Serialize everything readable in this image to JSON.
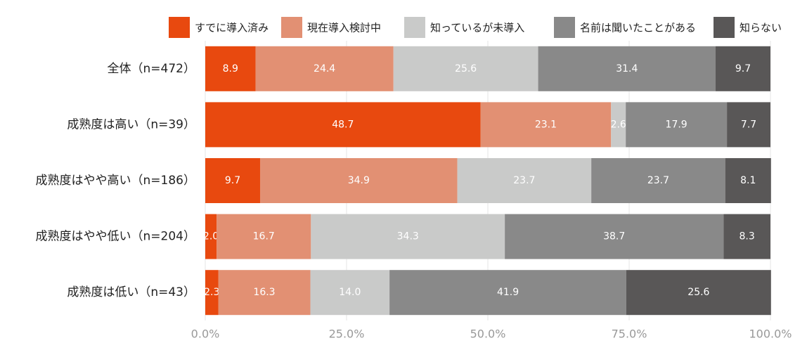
{
  "chart_data": {
    "type": "stacked-barh",
    "categories": [
      "全体（n=472）",
      "成熟度は高い（n=39）",
      "成熟度はやや高い（n=186）",
      "成熟度はやや低い（n=204）",
      "成熟度は低い（n=43）"
    ],
    "series": [
      {
        "name": "すでに導入済み",
        "color": "#e8490f",
        "values": [
          8.9,
          48.7,
          9.7,
          2.0,
          2.3
        ],
        "value_labels": [
          "8.9",
          "48.7",
          "9.7",
          "2.0",
          "2.3"
        ]
      },
      {
        "name": "現在導入検討中",
        "color": "#e29073",
        "values": [
          24.4,
          23.1,
          34.9,
          16.7,
          16.3
        ],
        "value_labels": [
          "24.4",
          "23.1",
          "34.9",
          "16.7",
          "16.3"
        ]
      },
      {
        "name": "知っているが未導入",
        "color": "#c9cac9",
        "values": [
          25.6,
          2.6,
          23.7,
          34.3,
          14.0
        ],
        "value_labels": [
          "25.6",
          "2.6",
          "23.7",
          "34.3",
          "14.0"
        ]
      },
      {
        "name": "名前は聞いたことがある",
        "color": "#898989",
        "values": [
          31.4,
          17.9,
          23.7,
          38.7,
          41.9
        ],
        "value_labels": [
          "31.4",
          "17.9",
          "23.7",
          "38.7",
          "41.9"
        ]
      },
      {
        "name": "知らない",
        "color": "#595757",
        "values": [
          9.7,
          7.7,
          8.1,
          8.3,
          25.6
        ],
        "value_labels": [
          "9.7",
          "7.7",
          "8.1",
          "8.3",
          "25.6"
        ]
      }
    ],
    "xlim": [
      0,
      100
    ],
    "xticks": [
      {
        "value": 0,
        "label": "0.0%"
      },
      {
        "value": 25,
        "label": "25.0%"
      },
      {
        "value": 50,
        "label": "50.0%"
      },
      {
        "value": 75,
        "label": "75.0%"
      },
      {
        "value": 100,
        "label": "100.0%"
      }
    ],
    "grid": true,
    "legend": "top"
  }
}
